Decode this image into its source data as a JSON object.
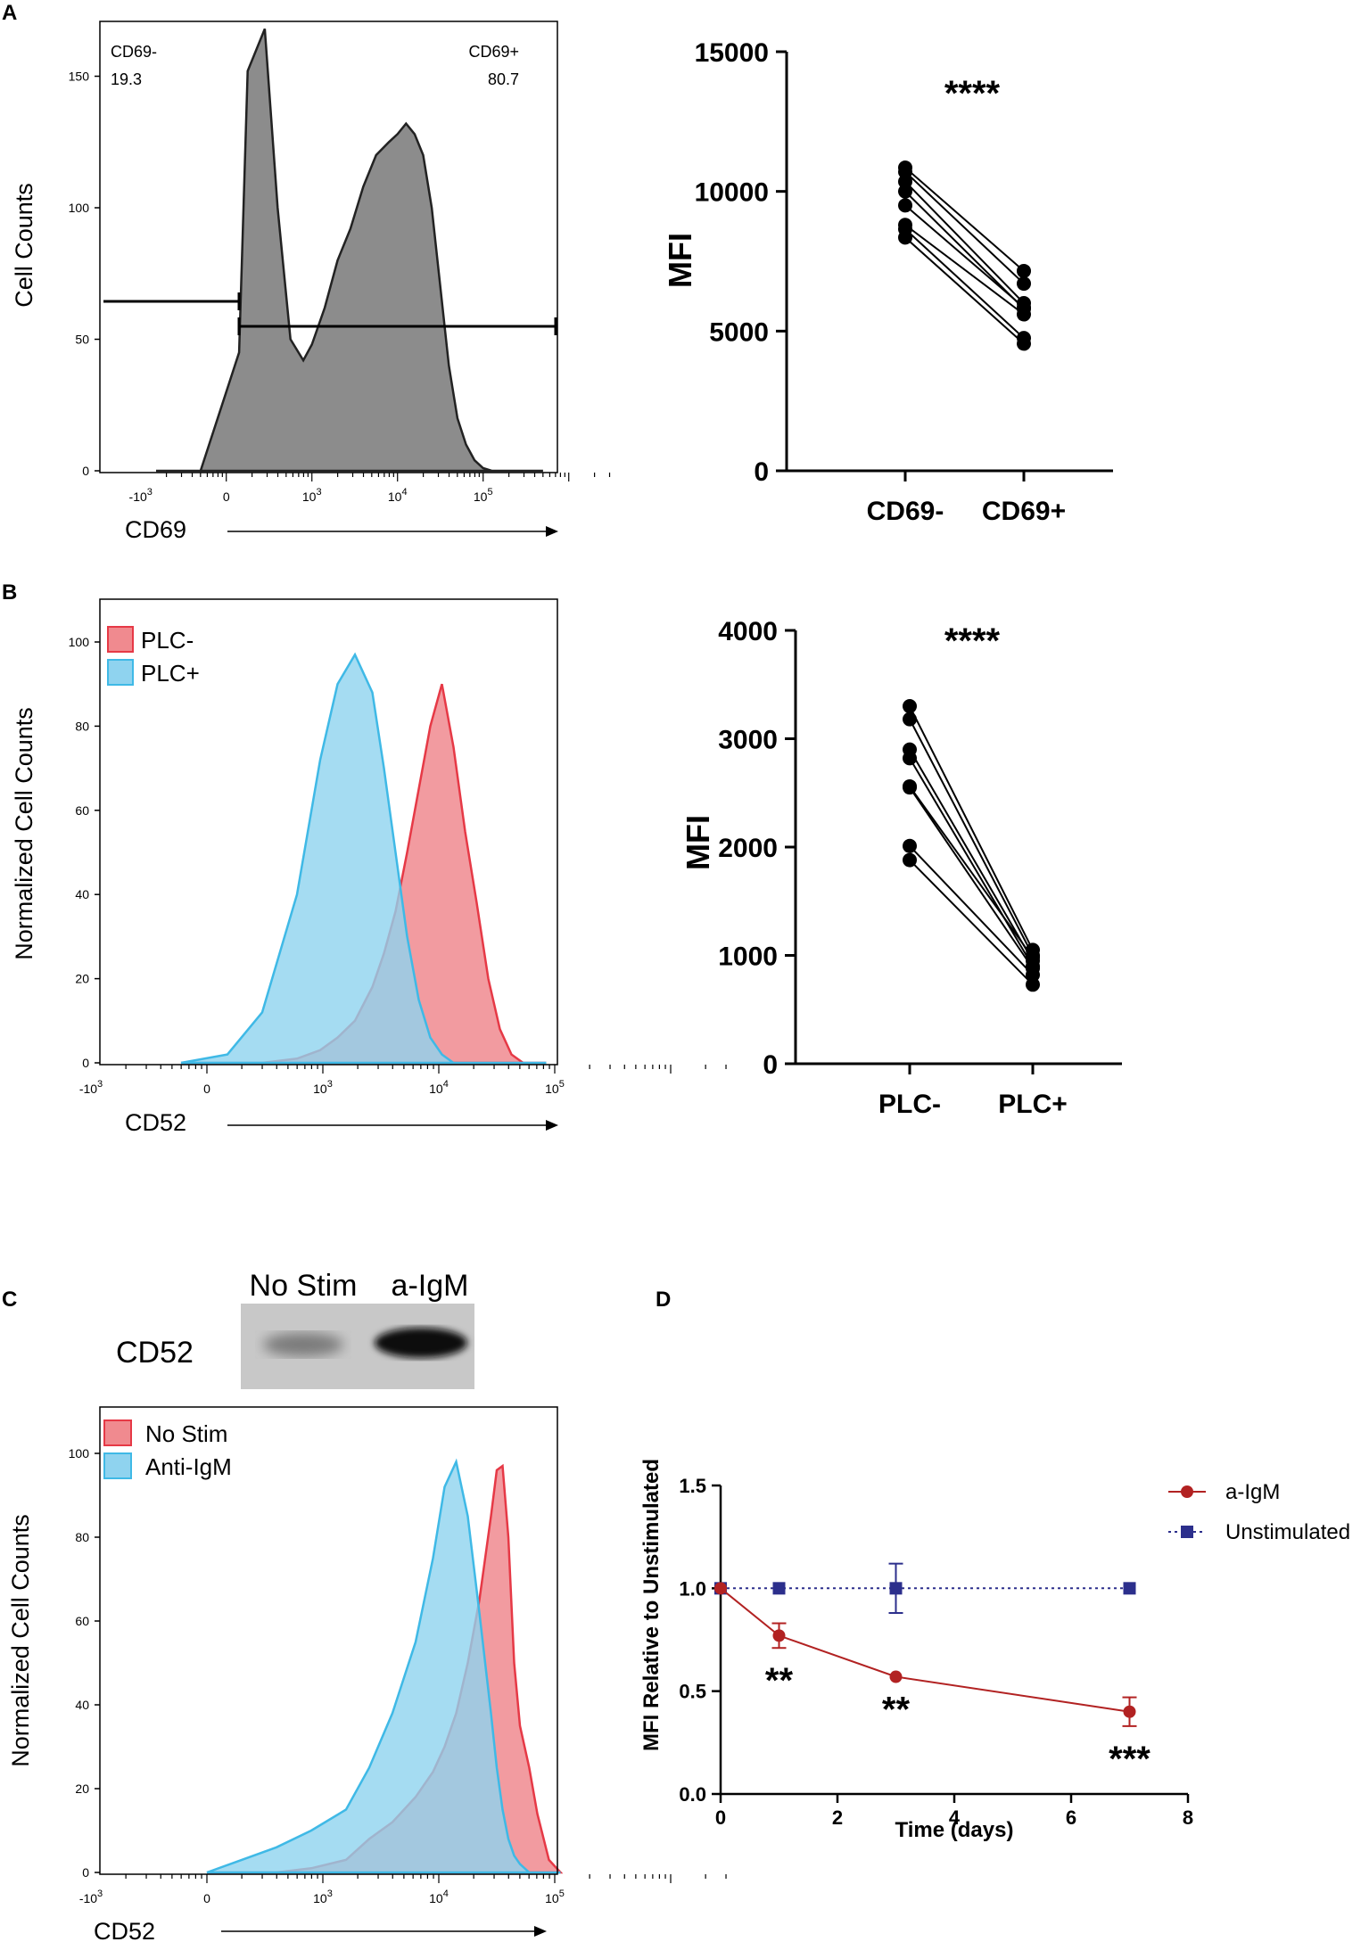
{
  "panel_labels": {
    "A": "A",
    "B": "B",
    "C": "C",
    "D": "D"
  },
  "colors": {
    "gray_fill": "#8c8c8c",
    "red_fill": "#f08a8f",
    "red_line": "#e63946",
    "blue_fill": "#8fd3ef",
    "blue_line": "#3fb9e6",
    "dark_red": "#b22222",
    "navy": "#2c2f8c"
  },
  "flow_ticks": [
    "-10",
    "3",
    "0",
    "10",
    "3",
    "10",
    "4",
    "10",
    "5"
  ],
  "blot": {
    "lanes": [
      "No Stim",
      "a-IgM"
    ],
    "label": "CD52"
  },
  "chart_data": [
    {
      "id": "A_hist",
      "type": "area",
      "xlabel": "CD69",
      "ylabel": "Cell Counts",
      "ylim": [
        0,
        170
      ],
      "yticks": [
        "0",
        "50",
        "100",
        "150"
      ],
      "gates": [
        {
          "name": "CD69-",
          "percent": "19.3"
        },
        {
          "name": "CD69+",
          "percent": "80.7"
        }
      ],
      "x_decades": [
        -0.82,
        -0.3,
        0.15,
        0.25,
        0.45,
        0.6,
        0.75,
        0.9,
        1.0,
        1.15,
        1.3,
        1.45,
        1.6,
        1.75,
        1.9,
        2.0,
        2.1,
        2.2,
        2.3,
        2.4,
        2.5,
        2.6,
        2.7,
        2.8,
        2.9,
        3.0,
        3.1,
        3.25,
        3.4,
        3.55,
        3.7
      ],
      "counts": [
        0,
        0,
        45,
        152,
        168,
        100,
        50,
        42,
        48,
        62,
        80,
        92,
        108,
        120,
        125,
        128,
        132,
        128,
        120,
        100,
        70,
        40,
        20,
        10,
        4,
        1,
        0,
        0,
        0,
        0,
        0
      ]
    },
    {
      "id": "A_mfi",
      "type": "scatter",
      "categories": [
        "CD69-",
        "CD69+"
      ],
      "ylabel": "MFI",
      "ylim": [
        0,
        15000
      ],
      "yticks": [
        "0",
        "5000",
        "10000",
        "15000"
      ],
      "significance": "****",
      "pairs": [
        [
          10850,
          7150
        ],
        [
          10700,
          6700
        ],
        [
          10350,
          6000
        ],
        [
          10000,
          5800
        ],
        [
          9500,
          5850
        ],
        [
          8800,
          5600
        ],
        [
          8650,
          4750
        ],
        [
          8350,
          4550
        ]
      ]
    },
    {
      "id": "B_hist",
      "type": "area",
      "xlabel": "CD52",
      "ylabel": "Normalized Cell Counts",
      "ylim": [
        0,
        100
      ],
      "yticks": [
        "0",
        "20",
        "40",
        "60",
        "80",
        "100"
      ],
      "legend": [
        "PLC-",
        "PLC+"
      ],
      "x_decades": [
        -0.3,
        0.1,
        0.4,
        0.7,
        0.9,
        1.05,
        1.2,
        1.35,
        1.45,
        1.55,
        1.65,
        1.75,
        1.85,
        1.95,
        2.05,
        2.15,
        2.25,
        2.35,
        2.45,
        2.55,
        2.65,
        2.75,
        2.85
      ],
      "series": [
        {
          "name": "PLC-",
          "values": [
            0,
            0,
            0,
            1,
            3,
            6,
            10,
            18,
            26,
            36,
            50,
            65,
            80,
            90,
            75,
            55,
            38,
            20,
            8,
            2,
            0,
            0,
            0
          ]
        },
        {
          "name": "PLC+",
          "values": [
            0,
            2,
            12,
            40,
            72,
            90,
            97,
            88,
            70,
            50,
            30,
            15,
            6,
            2,
            0,
            0,
            0,
            0,
            0,
            0,
            0,
            0,
            0
          ]
        }
      ]
    },
    {
      "id": "B_mfi",
      "type": "scatter",
      "categories": [
        "PLC-",
        "PLC+"
      ],
      "ylabel": "MFI",
      "ylim": [
        0,
        4000
      ],
      "yticks": [
        "0",
        "1000",
        "2000",
        "3000",
        "4000"
      ],
      "significance": "****",
      "pairs": [
        [
          3300,
          1050
        ],
        [
          3180,
          1000
        ],
        [
          2900,
          950
        ],
        [
          2820,
          900
        ],
        [
          2560,
          980
        ],
        [
          2550,
          880
        ],
        [
          2010,
          820
        ],
        [
          1880,
          730
        ]
      ]
    },
    {
      "id": "C_hist",
      "type": "area",
      "xlabel": "CD52",
      "ylabel": "Normalized Cell Counts",
      "ylim": [
        0,
        100
      ],
      "yticks": [
        "0",
        "20",
        "40",
        "60",
        "80",
        "100"
      ],
      "legend": [
        "No Stim",
        "Anti-IgM"
      ],
      "x_decades": [
        0.0,
        0.3,
        0.6,
        0.9,
        1.2,
        1.4,
        1.6,
        1.8,
        1.95,
        2.05,
        2.15,
        2.25,
        2.35,
        2.45,
        2.5,
        2.55,
        2.6,
        2.65,
        2.7,
        2.78,
        2.85,
        2.95,
        3.05
      ],
      "series": [
        {
          "name": "No Stim",
          "values": [
            0,
            0,
            0,
            1,
            3,
            8,
            12,
            18,
            24,
            30,
            38,
            50,
            65,
            85,
            96,
            97,
            80,
            50,
            35,
            25,
            14,
            3,
            0
          ]
        },
        {
          "name": "Anti-IgM",
          "values": [
            0,
            3,
            6,
            10,
            15,
            25,
            38,
            55,
            75,
            92,
            98,
            85,
            62,
            38,
            25,
            15,
            8,
            4,
            2,
            0,
            0,
            0,
            0
          ]
        }
      ]
    },
    {
      "id": "D_line",
      "type": "line",
      "xlabel": "Time (days)",
      "ylabel": "MFI Relative to Unstimulated",
      "xlim": [
        0,
        8
      ],
      "ylim": [
        0,
        1.5
      ],
      "xticks": [
        "0",
        "2",
        "4",
        "6",
        "8"
      ],
      "yticks": [
        "0.0",
        "0.5",
        "1.0",
        "1.5"
      ],
      "x": [
        0,
        1,
        3,
        7
      ],
      "series": [
        {
          "name": "a-IgM",
          "values": [
            1.0,
            0.77,
            0.57,
            0.4
          ],
          "errors": [
            0,
            0.06,
            0,
            0.07
          ]
        },
        {
          "name": "Unstimulated",
          "values": [
            1.0,
            1.0,
            1.0,
            1.0
          ],
          "errors": [
            0,
            0,
            0.12,
            0
          ]
        }
      ],
      "significance": [
        "",
        "**",
        "**",
        "***"
      ]
    }
  ]
}
